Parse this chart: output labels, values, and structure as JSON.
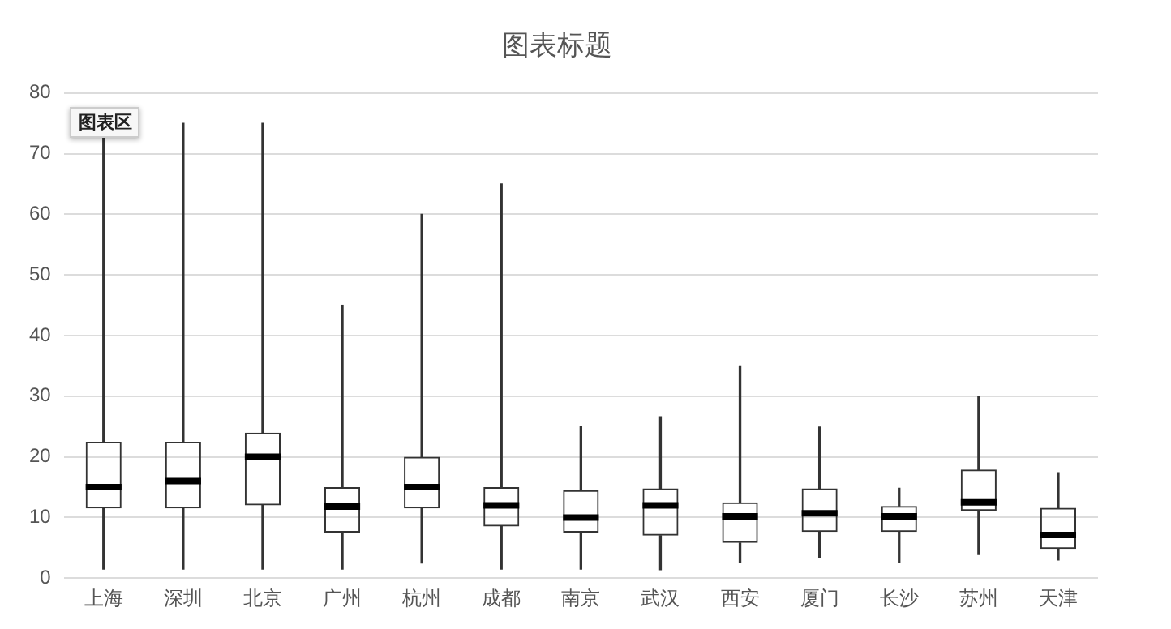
{
  "chart_data": {
    "type": "box",
    "title": "图表标题",
    "annotations": [
      "图表区"
    ],
    "categories": [
      "上海",
      "深圳",
      "北京",
      "广州",
      "杭州",
      "成都",
      "南京",
      "武汉",
      "西安",
      "厦门",
      "长沙",
      "苏州",
      "天津"
    ],
    "boxes": [
      {
        "low": 1.5,
        "q1": 11.5,
        "median": 15,
        "q3": 22.5,
        "high": 75
      },
      {
        "low": 1.5,
        "q1": 11.5,
        "median": 16,
        "q3": 22.5,
        "high": 75
      },
      {
        "low": 1.5,
        "q1": 12,
        "median": 20,
        "q3": 24,
        "high": 75
      },
      {
        "low": 1.5,
        "q1": 7.5,
        "median": 11.8,
        "q3": 15,
        "high": 45
      },
      {
        "low": 2.5,
        "q1": 11.5,
        "median": 15,
        "q3": 20,
        "high": 60
      },
      {
        "low": 1.5,
        "q1": 8.5,
        "median": 12,
        "q3": 15,
        "high": 65
      },
      {
        "low": 1.5,
        "q1": 7.5,
        "median": 10,
        "q3": 14.5,
        "high": 25
      },
      {
        "low": 1.4,
        "q1": 7,
        "median": 12,
        "q3": 14.8,
        "high": 26.6
      },
      {
        "low": 2.6,
        "q1": 5.8,
        "median": 10.2,
        "q3": 12.5,
        "high": 35
      },
      {
        "low": 3.4,
        "q1": 7.6,
        "median": 10.7,
        "q3": 14.8,
        "high": 24.9
      },
      {
        "low": 2.6,
        "q1": 7.6,
        "median": 10.2,
        "q3": 11.9,
        "high": 14.8
      },
      {
        "low": 3.9,
        "q1": 11.1,
        "median": 12.5,
        "q3": 17.9,
        "high": 30
      },
      {
        "low": 3,
        "q1": 4.8,
        "median": 7.1,
        "q3": 11.6,
        "high": 17.4
      }
    ],
    "color": "#333333",
    "ylim": [
      0,
      80
    ],
    "yticks": [
      0,
      10,
      20,
      30,
      40,
      50,
      60,
      70,
      80
    ],
    "grid": "y",
    "legend": false
  }
}
